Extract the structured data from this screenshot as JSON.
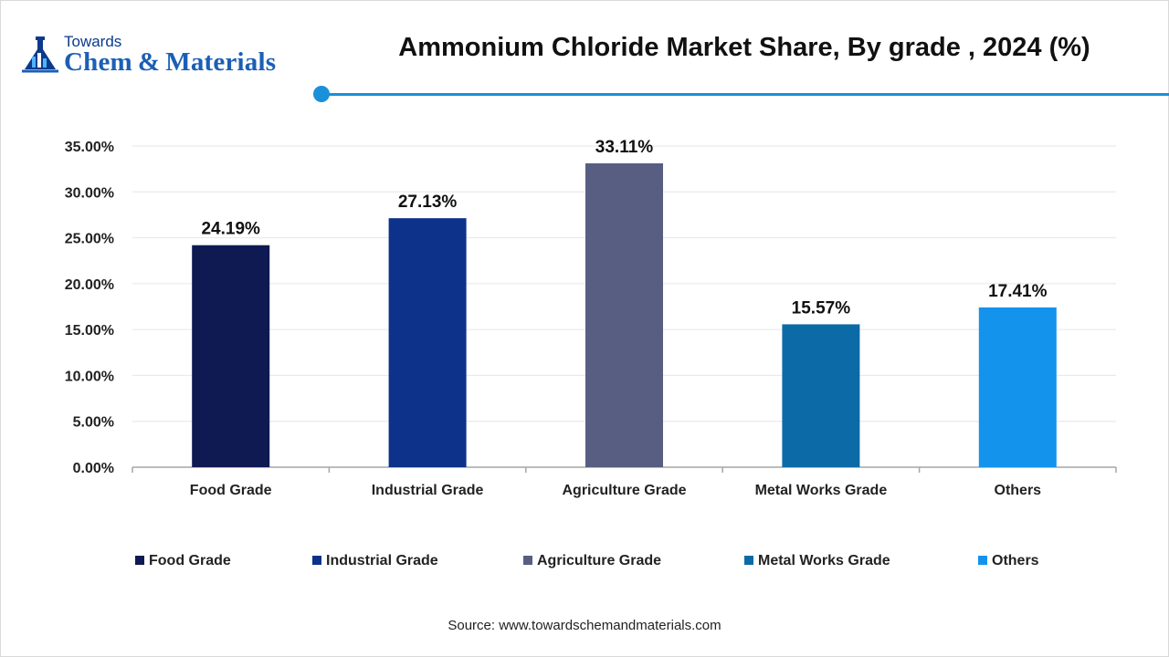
{
  "header": {
    "logo_top": "Towards",
    "logo_main": "Chem & Materials",
    "accent_color": "#1a90d9"
  },
  "chart_data": {
    "type": "bar",
    "title": "Ammonium Chloride Market Share, By grade , 2024 (%)",
    "categories": [
      "Food Grade",
      "Industrial Grade",
      "Agriculture Grade",
      "Metal Works Grade",
      "Others"
    ],
    "values": [
      24.19,
      27.13,
      33.11,
      15.57,
      17.41
    ],
    "value_labels": [
      "24.19%",
      "27.13%",
      "33.11%",
      "15.57%",
      "17.41%"
    ],
    "colors": [
      "#0f1a52",
      "#0c3289",
      "#575e82",
      "#0c6ba6",
      "#1493ec"
    ],
    "yticks": [
      0,
      5,
      10,
      15,
      20,
      25,
      30,
      35
    ],
    "ytick_labels": [
      "0.00%",
      "5.00%",
      "10.00%",
      "15.00%",
      "20.00%",
      "25.00%",
      "30.00%",
      "35.00%"
    ],
    "ylim": [
      0,
      35
    ],
    "grid": true,
    "legend_placement": "bottom",
    "legend": [
      "Food Grade",
      "Industrial Grade",
      "Agriculture Grade",
      "Metal Works Grade",
      "Others"
    ]
  },
  "footer": {
    "source": "Source: www.towardschemandmaterials.com"
  }
}
